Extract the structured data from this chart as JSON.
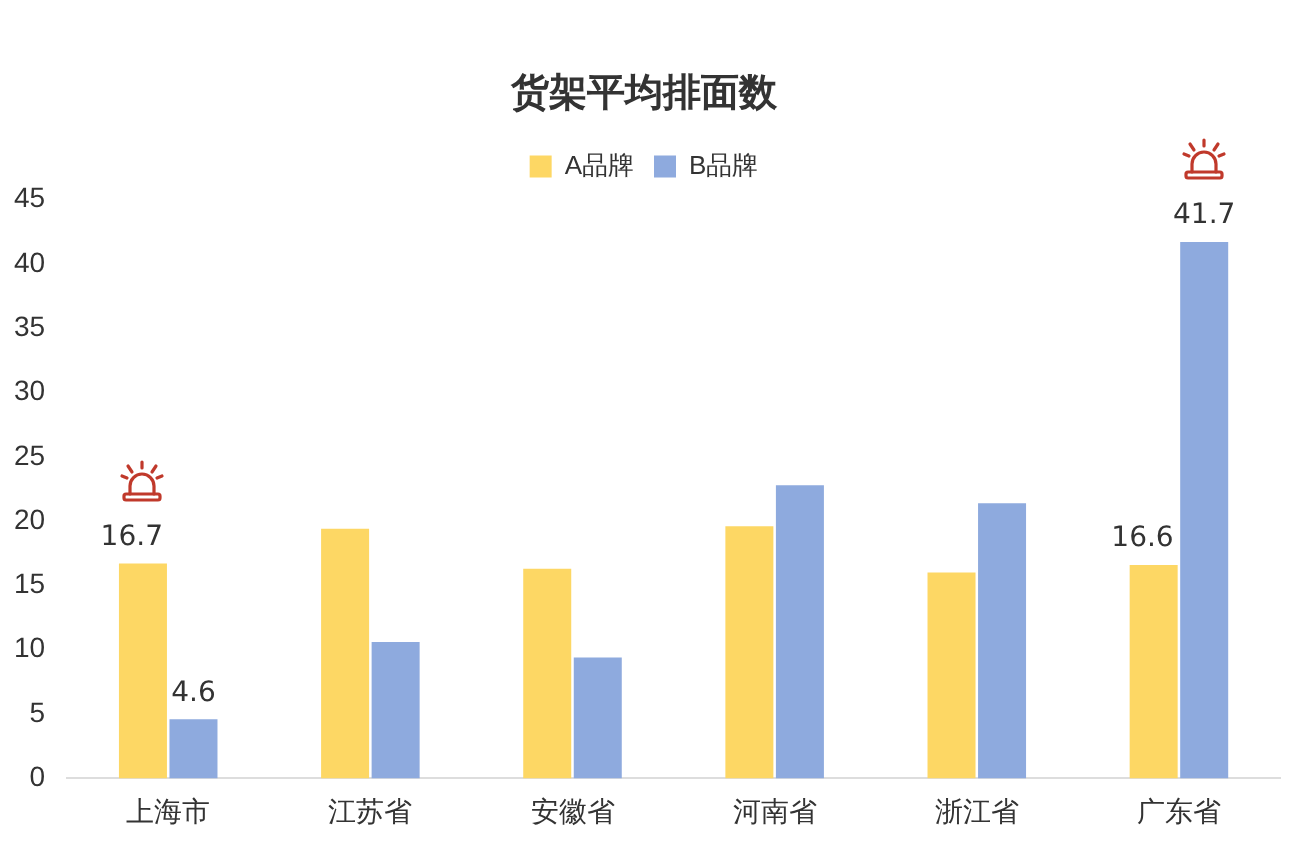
{
  "chart_data": {
    "type": "bar",
    "title": "货架平均排面数",
    "categories": [
      "上海市",
      "江苏省",
      "安徽省",
      "河南省",
      "浙江省",
      "广东省"
    ],
    "series": [
      {
        "name": "A品牌",
        "color": "#fdd764",
        "values": [
          16.7,
          19.4,
          16.3,
          19.6,
          16.0,
          16.6
        ],
        "value_labels": [
          "16.7",
          null,
          null,
          null,
          null,
          "16.6"
        ]
      },
      {
        "name": "B品牌",
        "color": "#8eaade",
        "values": [
          4.6,
          10.6,
          9.4,
          22.8,
          21.4,
          41.7
        ],
        "value_labels": [
          "4.6",
          null,
          null,
          null,
          null,
          "41.7"
        ]
      }
    ],
    "ylim": [
      0,
      45
    ],
    "yticks": [
      0,
      5,
      10,
      15,
      20,
      25,
      30,
      35,
      40,
      45
    ],
    "grid": false,
    "legend": "top"
  }
}
